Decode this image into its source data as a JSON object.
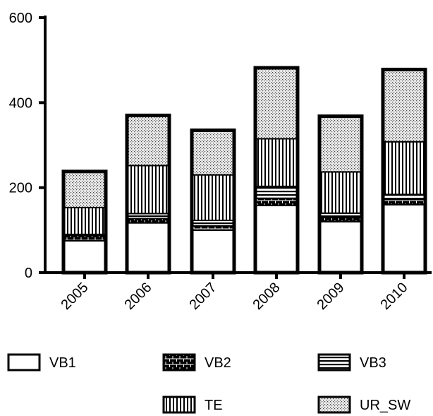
{
  "chart_data": {
    "type": "bar",
    "stacked": true,
    "categories": [
      "2005",
      "2006",
      "2007",
      "2008",
      "2009",
      "2010"
    ],
    "series": [
      {
        "name": "VB1",
        "values": [
          75,
          117,
          100,
          158,
          120,
          160
        ],
        "pattern": "blank"
      },
      {
        "name": "VB2",
        "values": [
          13,
          10,
          10,
          17,
          10,
          12
        ],
        "pattern": "brick"
      },
      {
        "name": "VB3",
        "values": [
          2,
          12,
          13,
          28,
          10,
          12
        ],
        "pattern": "horizontal-lines"
      },
      {
        "name": "TE",
        "values": [
          63,
          113,
          107,
          112,
          97,
          124
        ],
        "pattern": "vertical-lines"
      },
      {
        "name": "UR_SW",
        "values": [
          85,
          118,
          105,
          167,
          131,
          170
        ],
        "pattern": "dots"
      }
    ],
    "title": "",
    "xlabel": "",
    "ylabel": "",
    "ylim": [
      0,
      600
    ],
    "yticks": [
      0,
      200,
      400,
      600
    ],
    "grid": false,
    "legend_position": "bottom",
    "colors": {
      "stroke": "#000000",
      "fill": "#ffffff"
    }
  }
}
